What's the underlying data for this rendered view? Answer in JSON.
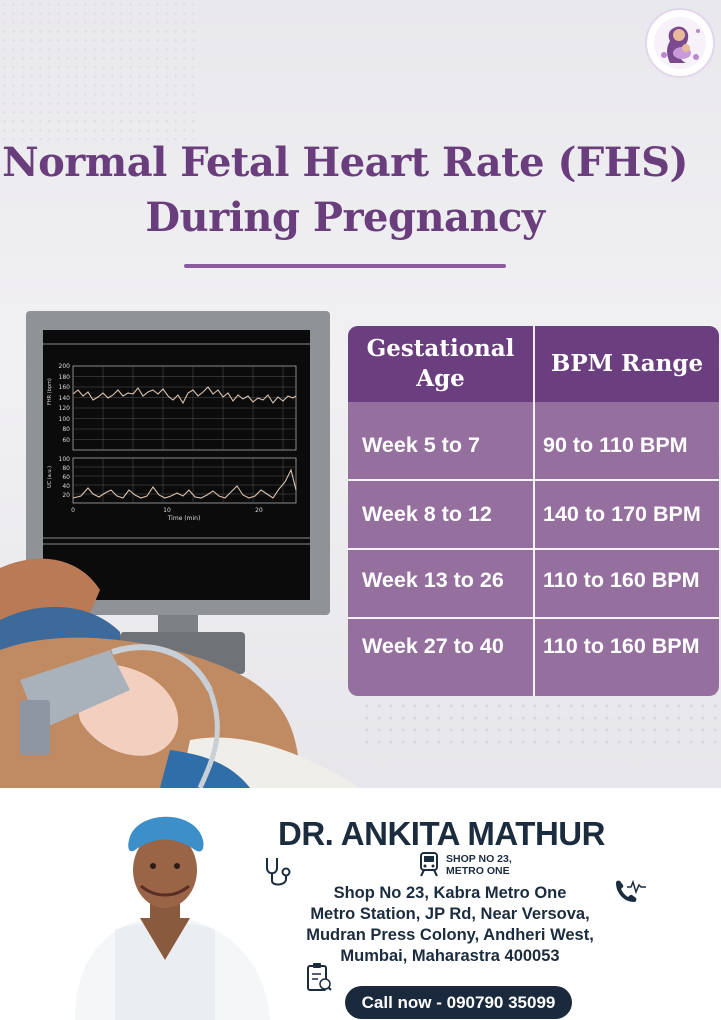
{
  "title": {
    "line1": "Normal Fetal Heart Rate (FHS)",
    "line2": "During Pregnancy"
  },
  "monitor": {
    "fhr_label": "FHR (bpm)",
    "uc_label": "UC (a.u.)",
    "fhr_ticks": [
      "200",
      "180",
      "160",
      "140",
      "120",
      "100",
      "80",
      "60"
    ],
    "uc_ticks": [
      "100",
      "80",
      "60",
      "40",
      "20"
    ],
    "x_ticks": [
      "0",
      "10",
      "20"
    ],
    "x_label": "Time (min)"
  },
  "table": {
    "headers": [
      "Gestational Age",
      "BPM Range"
    ],
    "rows": [
      {
        "age": "Week 5 to 7",
        "bpm": "90 to 110 BPM"
      },
      {
        "age": "Week 8 to 12",
        "bpm": "140 to 170 BPM"
      },
      {
        "age": "Week 13 to 26",
        "bpm": "110 to 160 BPM"
      },
      {
        "age": "Week 27 to 40",
        "bpm": "110 to 160 BPM"
      }
    ]
  },
  "footer": {
    "doctor_name": "DR. ANKITA MATHUR",
    "shop_short_line1": "SHOP NO 23,",
    "shop_short_line2": "METRO ONE",
    "address_lines": [
      "Shop No 23, Kabra Metro One",
      "Metro Station, JP Rd, Near Versova,",
      "Mudran Press Colony, Andheri West,",
      "Mumbai, Maharastra 400053"
    ],
    "call_label": "Call now - 090790 35099"
  },
  "colors": {
    "title_purple": "#6a3d7d",
    "table_header": "#6b3f7f",
    "table_body": "#95709f",
    "navy": "#1c2c3f"
  },
  "icons": [
    "logo-mother-baby-icon",
    "stethoscope-icon",
    "metro-train-icon",
    "phone-icon",
    "clipboard-icon"
  ]
}
